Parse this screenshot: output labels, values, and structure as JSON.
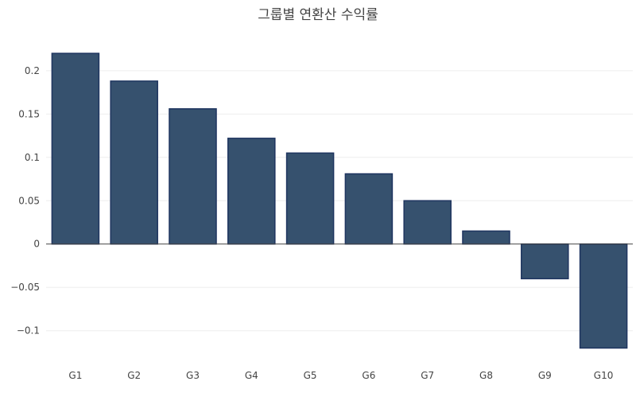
{
  "chart_data": {
    "type": "bar",
    "title": "그룹별 연환산 수익률",
    "xlabel": "",
    "ylabel": "",
    "categories": [
      "G1",
      "G2",
      "G3",
      "G4",
      "G5",
      "G6",
      "G7",
      "G8",
      "G9",
      "G10"
    ],
    "values": [
      0.22,
      0.188,
      0.156,
      0.122,
      0.105,
      0.081,
      0.05,
      0.015,
      -0.04,
      -0.12
    ],
    "yticks": [
      -0.1,
      -0.05,
      0,
      0.05,
      0.1,
      0.15,
      0.2
    ],
    "ytick_labels": [
      "−0.1",
      "−0.05",
      "0",
      "0.05",
      "0.1",
      "0.15",
      "0.2"
    ],
    "ylim": [
      -0.137,
      0.232
    ],
    "grid": true,
    "colors": {
      "bar_fill": "#36516e",
      "bar_stroke": "#1f3560"
    }
  }
}
